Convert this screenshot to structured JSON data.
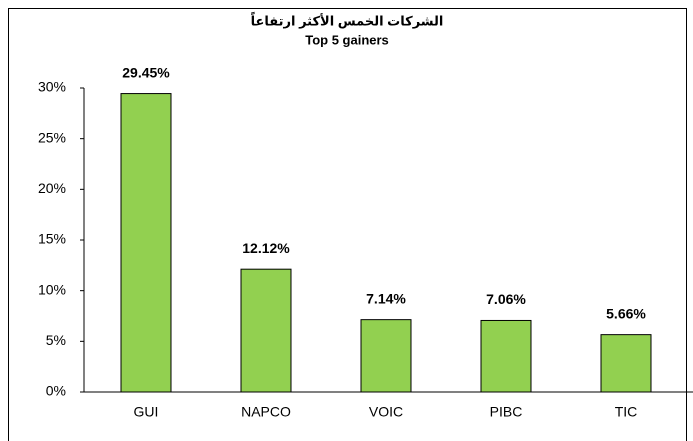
{
  "chart_data": {
    "type": "bar",
    "title": "الشركات الخمس الأكثر ارتفاعاً",
    "subtitle": "Top 5 gainers",
    "categories": [
      "GUI",
      "NAPCO",
      "VOIC",
      "PIBC",
      "TIC"
    ],
    "values": [
      29.45,
      12.12,
      7.14,
      7.06,
      5.66
    ],
    "value_labels": [
      "29.45%",
      "12.12%",
      "7.14%",
      "7.06%",
      "5.66%"
    ],
    "color": "#92d050",
    "ylim": [
      0,
      30
    ],
    "yticks": [
      {
        "value": 0,
        "label": "0%"
      },
      {
        "value": 5,
        "label": "5%"
      },
      {
        "value": 10,
        "label": "10%"
      },
      {
        "value": 15,
        "label": "15%"
      },
      {
        "value": 20,
        "label": "20%"
      },
      {
        "value": 25,
        "label": "25%"
      },
      {
        "value": 30,
        "label": "30%"
      }
    ],
    "grid": false
  }
}
